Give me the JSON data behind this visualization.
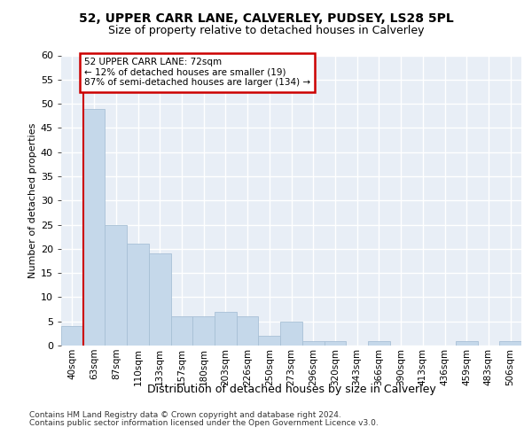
{
  "title1": "52, UPPER CARR LANE, CALVERLEY, PUDSEY, LS28 5PL",
  "title2": "Size of property relative to detached houses in Calverley",
  "xlabel": "Distribution of detached houses by size in Calverley",
  "ylabel": "Number of detached properties",
  "bins": [
    "40sqm",
    "63sqm",
    "87sqm",
    "110sqm",
    "133sqm",
    "157sqm",
    "180sqm",
    "203sqm",
    "226sqm",
    "250sqm",
    "273sqm",
    "296sqm",
    "320sqm",
    "343sqm",
    "366sqm",
    "390sqm",
    "413sqm",
    "436sqm",
    "459sqm",
    "483sqm",
    "506sqm"
  ],
  "values": [
    4,
    49,
    25,
    21,
    19,
    6,
    6,
    7,
    6,
    2,
    5,
    1,
    1,
    0,
    1,
    0,
    0,
    0,
    1,
    0,
    1
  ],
  "bar_color": "#c5d8ea",
  "bar_edge_color": "#a8c0d6",
  "vline_color": "#cc0000",
  "vline_index": 1,
  "annotation_text": "52 UPPER CARR LANE: 72sqm\n← 12% of detached houses are smaller (19)\n87% of semi-detached houses are larger (134) →",
  "annotation_box_facecolor": "#ffffff",
  "annotation_box_edgecolor": "#cc0000",
  "ylim": [
    0,
    60
  ],
  "yticks": [
    0,
    5,
    10,
    15,
    20,
    25,
    30,
    35,
    40,
    45,
    50,
    55,
    60
  ],
  "plot_bg_color": "#e8eef6",
  "fig_bg_color": "#ffffff",
  "footnote1": "Contains HM Land Registry data © Crown copyright and database right 2024.",
  "footnote2": "Contains public sector information licensed under the Open Government Licence v3.0.",
  "title1_fontsize": 10,
  "title2_fontsize": 9,
  "ylabel_fontsize": 8,
  "xlabel_fontsize": 9,
  "tick_fontsize": 8,
  "xtick_fontsize": 7.5,
  "footnote_fontsize": 6.5
}
